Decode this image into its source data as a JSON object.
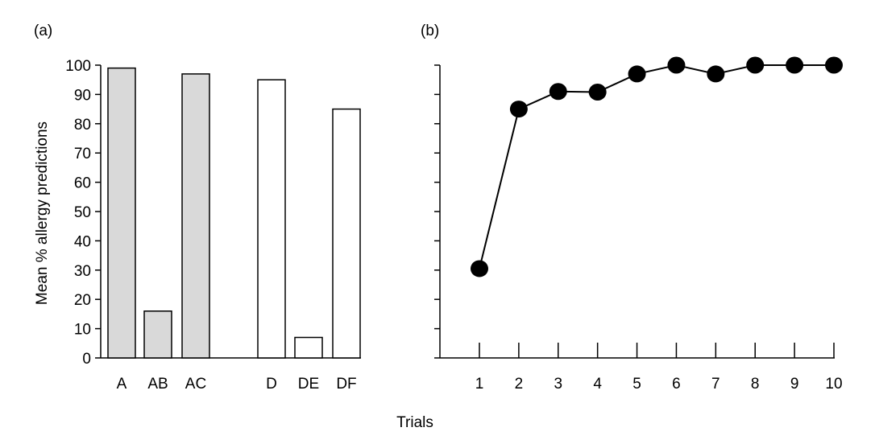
{
  "chart_data": [
    {
      "panel": "(a)",
      "type": "bar",
      "ylabel": "Mean % allergy predictions",
      "ylim": [
        0,
        100
      ],
      "yticks": [
        0,
        10,
        20,
        30,
        40,
        50,
        60,
        70,
        80,
        90,
        100
      ],
      "categories": [
        "A",
        "AB",
        "AC",
        "D",
        "DE",
        "DF"
      ],
      "values": [
        99,
        16,
        97,
        95,
        7,
        85
      ],
      "bar_colors": [
        "#d9d9d9",
        "#d9d9d9",
        "#d9d9d9",
        "#ffffff",
        "#ffffff",
        "#ffffff"
      ],
      "grid": false
    },
    {
      "panel": "(b)",
      "type": "line",
      "xlabel": "Trials",
      "x": [
        1,
        2,
        3,
        4,
        5,
        6,
        7,
        8,
        9,
        10
      ],
      "y": [
        30.5,
        85,
        91,
        90.8,
        97,
        100,
        97,
        100,
        100,
        100
      ],
      "ylim": [
        0,
        100
      ],
      "grid": false
    }
  ]
}
